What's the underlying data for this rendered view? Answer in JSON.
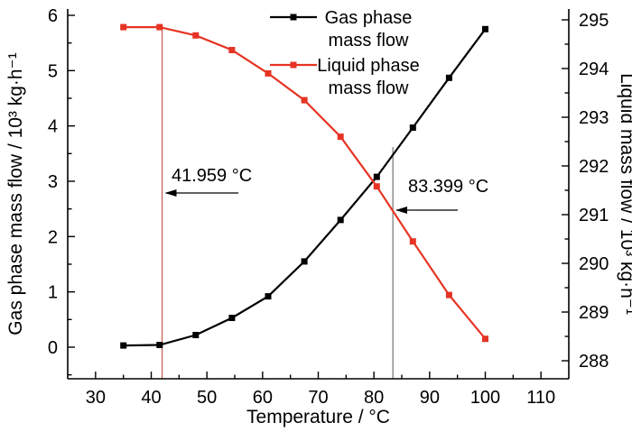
{
  "chart_data": {
    "type": "line",
    "title": "",
    "xlabel": "Temperature / °C",
    "ylabel_left": "Gas phase mass flow / 10³ kg·h⁻¹",
    "ylabel_right": "Liquid mass flow / 10³ kg·h⁻¹",
    "x_range": [
      25,
      115
    ],
    "x_ticks": [
      30,
      40,
      50,
      60,
      70,
      80,
      90,
      100,
      110
    ],
    "x_minor_step": 5,
    "y_left_range": [
      -0.571,
      6.114
    ],
    "y_left_ticks": [
      0,
      1,
      2,
      3,
      4,
      5,
      6
    ],
    "y_right_range": [
      287.63,
      295.222
    ],
    "y_right_ticks": [
      288,
      289,
      290,
      291,
      292,
      293,
      294,
      295
    ],
    "grid": false,
    "legend_position": "top-center",
    "marker": "square",
    "x": [
      35,
      41.5,
      48,
      54.5,
      61,
      67.5,
      74,
      80.5,
      87,
      93.5,
      100
    ],
    "series": [
      {
        "name": "Gas phase mass flow",
        "label_lines": [
          "Gas phase",
          "mass flow"
        ],
        "axis": "left",
        "color": "#000000",
        "values": [
          0.03,
          0.04,
          0.22,
          0.53,
          0.92,
          1.55,
          2.3,
          3.08,
          3.97,
          4.87,
          5.75
        ]
      },
      {
        "name": "Liquid phase mass flow",
        "label_lines": [
          "Liquid phase",
          "mass flow"
        ],
        "axis": "right",
        "color": "#e63323",
        "values": [
          294.85,
          294.85,
          294.68,
          294.38,
          293.9,
          293.35,
          292.6,
          291.58,
          290.45,
          289.35,
          288.45
        ]
      }
    ],
    "annotations": [
      {
        "text": "41.959 °C",
        "line_x": 41.959,
        "line_color": "#c04030"
      },
      {
        "text": "83.399 °C",
        "line_x": 83.399,
        "line_color": "#595959"
      }
    ],
    "axis_color": "#000000"
  }
}
